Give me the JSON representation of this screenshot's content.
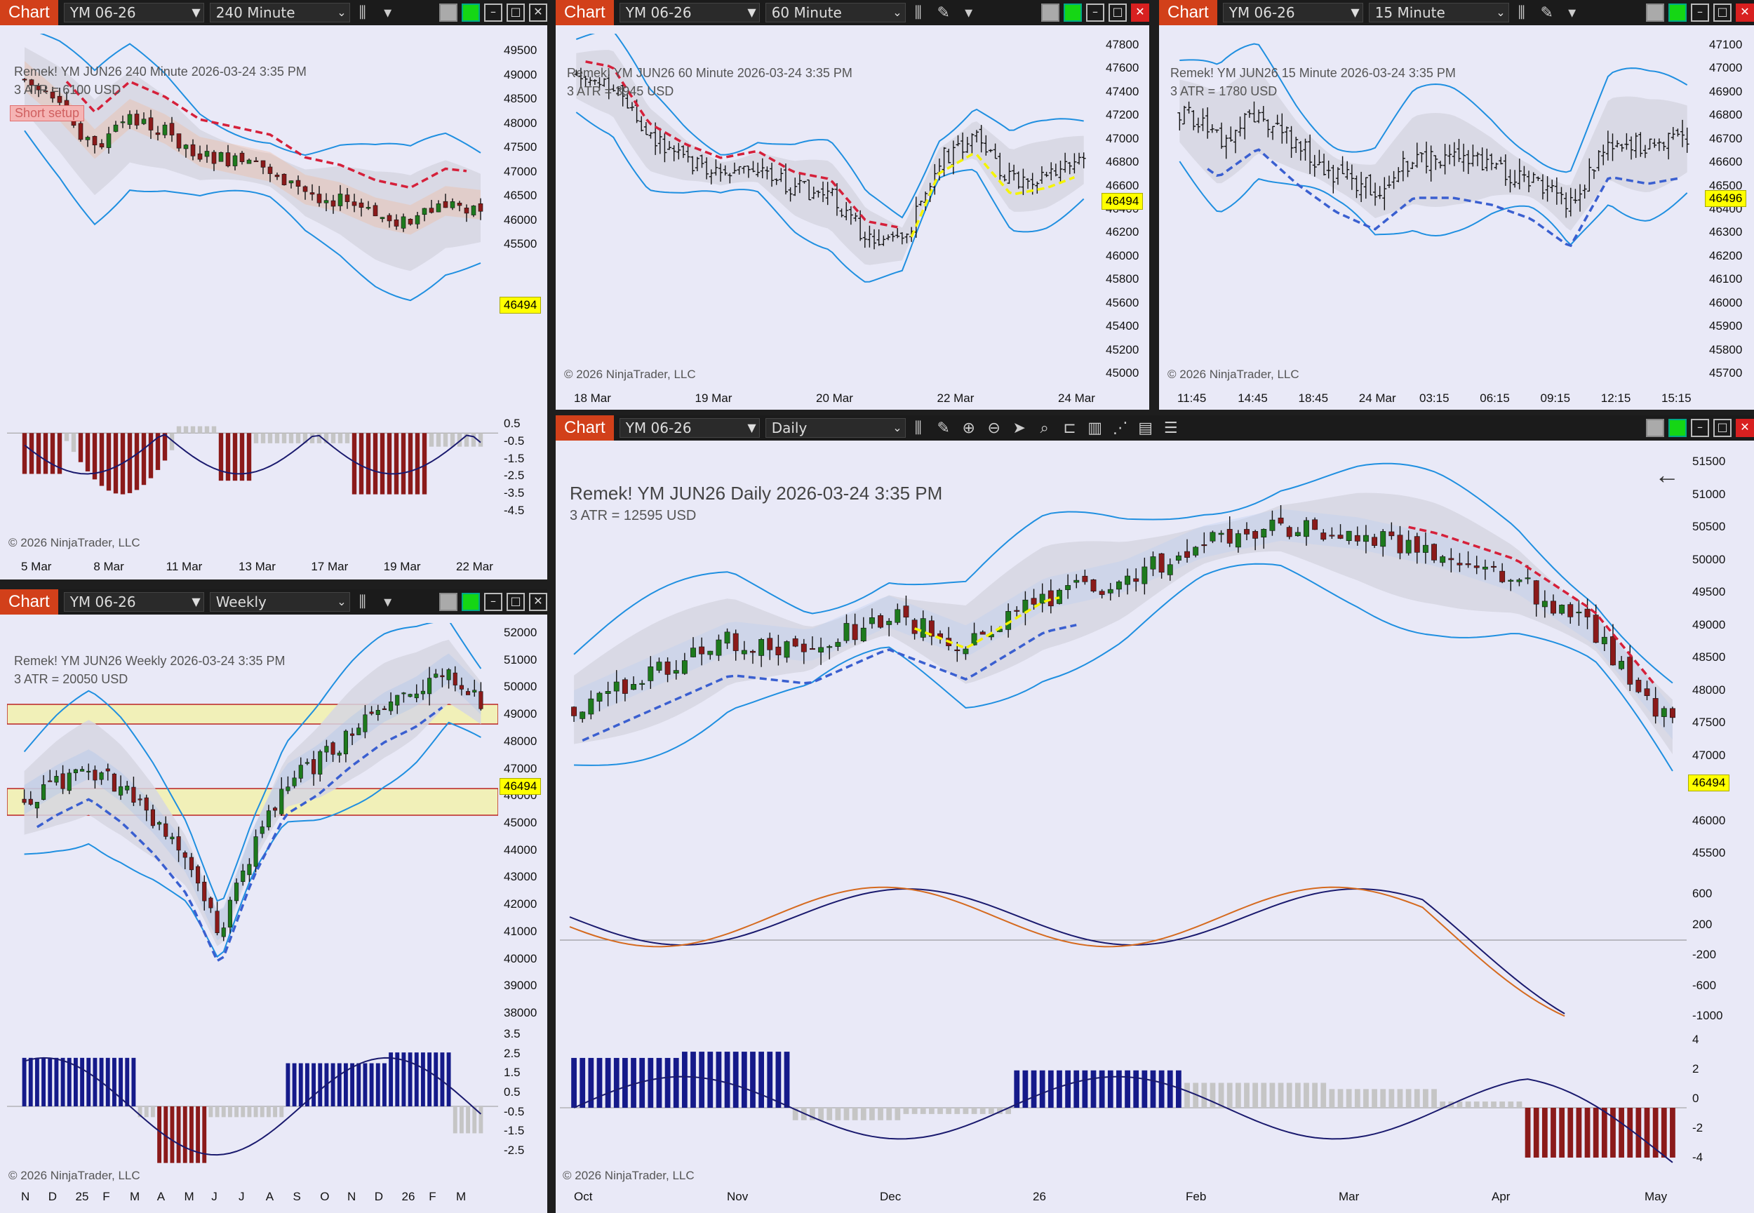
{
  "tab_label": "Chart",
  "windows": [
    {
      "id": "w240",
      "instrument": "YM 06-26",
      "interval": "240 Minute",
      "title": "Remek!  YM JUN26  240 Minute  2026-03-24 3:35 PM",
      "atr": "3 ATR = 6100 USD",
      "badge": "Short setup",
      "price": "46494",
      "copyright": "© 2026 NinjaTrader, LLC",
      "yticks": [
        "49500",
        "49000",
        "48500",
        "48000",
        "47500",
        "47000",
        "46500",
        "46000",
        "45500"
      ],
      "osc_ticks": [
        "0.5",
        "-0.5",
        "-1.5",
        "-2.5",
        "-3.5",
        "-4.5"
      ],
      "xticks": [
        "5 Mar",
        "8 Mar",
        "11 Mar",
        "13 Mar",
        "17 Mar",
        "19 Mar",
        "22 Mar"
      ]
    },
    {
      "id": "w60",
      "instrument": "YM 06-26",
      "interval": "60 Minute",
      "title": "Remek!  YM JUN26  60 Minute  2026-03-24 3:35 PM",
      "atr": "3 ATR = 3945 USD",
      "price": "46494",
      "copyright": "© 2026 NinjaTrader, LLC",
      "yticks": [
        "47800",
        "47600",
        "47400",
        "47200",
        "47000",
        "46800",
        "46600",
        "46400",
        "46200",
        "46000",
        "45800",
        "45600",
        "45400",
        "45200",
        "45000"
      ],
      "xticks": [
        "18 Mar",
        "19 Mar",
        "20 Mar",
        "22 Mar",
        "24 Mar"
      ]
    },
    {
      "id": "w15",
      "instrument": "YM 06-26",
      "interval": "15 Minute",
      "title": "Remek!  YM JUN26  15 Minute  2026-03-24 3:35 PM",
      "atr": "3 ATR = 1780 USD",
      "price": "46496",
      "copyright": "© 2026 NinjaTrader, LLC",
      "yticks": [
        "47100",
        "47000",
        "46900",
        "46800",
        "46700",
        "46600",
        "46500",
        "46400",
        "46300",
        "46200",
        "46100",
        "46000",
        "45900",
        "45800",
        "45700"
      ],
      "xticks": [
        "11:45",
        "14:45",
        "18:45",
        "24 Mar",
        "03:15",
        "06:15",
        "09:15",
        "12:15",
        "15:15"
      ]
    },
    {
      "id": "wW",
      "instrument": "YM 06-26",
      "interval": "Weekly",
      "title": "Remek!  YM JUN26  Weekly  2026-03-24 3:35 PM",
      "atr": "3 ATR = 20050 USD",
      "price": "46494",
      "copyright": "© 2026 NinjaTrader, LLC",
      "yticks": [
        "52000",
        "51000",
        "50000",
        "49000",
        "48000",
        "47000",
        "46000",
        "45000",
        "44000",
        "43000",
        "42000",
        "41000",
        "40000",
        "39000",
        "38000"
      ],
      "osc_ticks": [
        "3.5",
        "2.5",
        "1.5",
        "0.5",
        "-0.5",
        "-1.5",
        "-2.5"
      ],
      "xticks": [
        "N",
        "D",
        "25",
        "F",
        "M",
        "A",
        "M",
        "J",
        "J",
        "A",
        "S",
        "O",
        "N",
        "D",
        "26",
        "F",
        "M"
      ]
    },
    {
      "id": "wD",
      "instrument": "YM 06-26",
      "interval": "Daily",
      "title": "Remek!  YM JUN26  Daily  2026-03-24 3:35 PM",
      "atr": "3 ATR = 12595 USD",
      "price": "46494",
      "copyright": "© 2026 NinjaTrader, LLC",
      "yticks": [
        "51500",
        "51000",
        "50500",
        "50000",
        "49500",
        "49000",
        "48500",
        "48000",
        "47500",
        "47000",
        "46500",
        "46000",
        "45500"
      ],
      "macd_ticks": [
        "600",
        "200",
        "-200",
        "-600",
        "-1000"
      ],
      "osc_ticks": [
        "4",
        "2",
        "0",
        "-2",
        "-4"
      ],
      "xticks": [
        "Oct",
        "Nov",
        "Dec",
        "26",
        "Feb",
        "Mar",
        "Apr",
        "May"
      ]
    }
  ],
  "colors": {
    "tab": "#d2401a",
    "up": "#1d7a1d",
    "down": "#8b1a1a",
    "band": "#1f8fe0",
    "bear": "#d5203a",
    "bull": "#3a5fd0",
    "mid": "#f4f400"
  }
}
